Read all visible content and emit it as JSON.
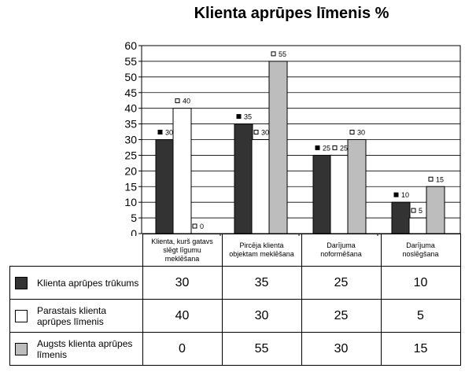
{
  "title": "Klienta aprūpes līmenis %",
  "colors": {
    "series": [
      "#333333",
      "#ffffff",
      "#bdbdbd"
    ],
    "plot_bg": "#ffffff",
    "grid": "#000000"
  },
  "chart_data": {
    "type": "bar",
    "title": "Klienta aprūpes līmenis %",
    "categories": [
      "Klienta, kurš gatavs slēgt līgumu meklēšana",
      "Pircēja klienta objektam meklēšana",
      "Darījuma noformēšana",
      "Darījuma noslēgšana"
    ],
    "series": [
      {
        "name": "Klienta aprūpes trūkums",
        "values": [
          30,
          35,
          25,
          10
        ]
      },
      {
        "name": "Parastais klienta aprūpes līmenis",
        "values": [
          40,
          30,
          25,
          5
        ]
      },
      {
        "name": "Augsts klienta aprūpes līmenis",
        "values": [
          0,
          55,
          30,
          15
        ]
      }
    ],
    "ylim": [
      0,
      60
    ],
    "yticks": [
      0,
      5,
      10,
      15,
      20,
      25,
      30,
      35,
      40,
      45,
      50,
      55,
      60
    ],
    "grid": true,
    "legend": "data table below chart"
  },
  "table": {
    "categories": [
      "Klienta, kurš gatavs slēgt līgumu meklēšana",
      "Pircēja klienta objektam meklēšana",
      "Darījuma noformēšana",
      "Darījuma noslēgšana"
    ],
    "rows": [
      {
        "label": "Klienta aprūpes trūkums",
        "values": [
          "30",
          "35",
          "25",
          "10"
        ]
      },
      {
        "label": "Parastais klienta aprūpes līmenis",
        "values": [
          "40",
          "30",
          "25",
          "5"
        ]
      },
      {
        "label": "Augsts klienta aprūpes līmenis",
        "values": [
          "0",
          "55",
          "30",
          "15"
        ]
      }
    ]
  }
}
